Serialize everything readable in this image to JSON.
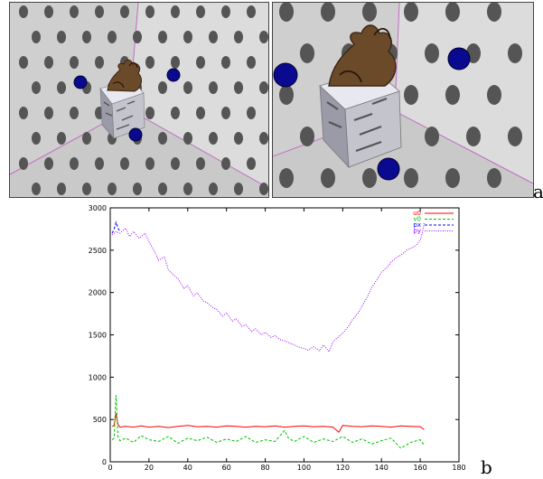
{
  "figure_labels": {
    "a": "a",
    "b": "b"
  },
  "colors": {
    "u0": "#ff0000",
    "v0": "#00c000",
    "px": "#0000ff",
    "py": "#a000ff",
    "wall": "#d9d9d9",
    "dots": "#555555",
    "spheres": "#0a0a90"
  },
  "chart_data": {
    "type": "line",
    "title": "",
    "xlabel": "",
    "ylabel": "",
    "xlim": [
      0,
      180
    ],
    "ylim": [
      0,
      3000
    ],
    "x_ticks": [
      0,
      20,
      40,
      60,
      80,
      100,
      120,
      140,
      160,
      180
    ],
    "y_ticks": [
      0,
      500,
      1000,
      1500,
      2000,
      2500,
      3000
    ],
    "legend_position": "top-right",
    "series": [
      {
        "name": "u0",
        "color": "#ff0000",
        "dash": "solid",
        "x": [
          1,
          2,
          3,
          4,
          5,
          8,
          12,
          16,
          20,
          25,
          30,
          35,
          40,
          45,
          50,
          55,
          60,
          65,
          70,
          75,
          80,
          85,
          90,
          95,
          100,
          105,
          110,
          115,
          118,
          120,
          125,
          130,
          135,
          140,
          145,
          150,
          155,
          160,
          162
        ],
        "values": [
          420,
          430,
          570,
          440,
          410,
          420,
          410,
          425,
          410,
          420,
          405,
          420,
          430,
          415,
          420,
          410,
          425,
          420,
          410,
          420,
          415,
          425,
          410,
          420,
          425,
          415,
          420,
          410,
          350,
          430,
          420,
          415,
          425,
          420,
          410,
          425,
          420,
          415,
          380
        ]
      },
      {
        "name": "v0",
        "color": "#00c000",
        "dash": "dashed",
        "x": [
          1,
          2,
          3,
          4,
          5,
          8,
          12,
          16,
          20,
          25,
          30,
          35,
          40,
          45,
          50,
          55,
          60,
          65,
          70,
          75,
          80,
          85,
          90,
          92,
          95,
          100,
          105,
          110,
          115,
          120,
          125,
          130,
          135,
          140,
          145,
          150,
          155,
          160,
          162
        ],
        "values": [
          260,
          280,
          790,
          300,
          250,
          280,
          230,
          310,
          260,
          240,
          300,
          220,
          280,
          250,
          290,
          230,
          270,
          240,
          300,
          230,
          260,
          240,
          370,
          280,
          240,
          300,
          230,
          270,
          240,
          300,
          230,
          270,
          210,
          250,
          280,
          160,
          230,
          260,
          200
        ]
      },
      {
        "name": "px",
        "color": "#0000ff",
        "dash": "dashed",
        "x": [
          1,
          2,
          3,
          4,
          5
        ],
        "values": [
          2700,
          2750,
          2830,
          2760,
          2720
        ]
      },
      {
        "name": "py",
        "color": "#a000ff",
        "dash": "dotted",
        "x": [
          1,
          3,
          5,
          8,
          10,
          12,
          15,
          18,
          20,
          23,
          25,
          28,
          30,
          33,
          35,
          38,
          40,
          43,
          45,
          48,
          50,
          53,
          55,
          58,
          60,
          63,
          65,
          68,
          70,
          73,
          75,
          78,
          80,
          83,
          85,
          88,
          90,
          93,
          95,
          98,
          100,
          102,
          105,
          108,
          110,
          113,
          115,
          118,
          120,
          123,
          125,
          128,
          130,
          133,
          135,
          138,
          140,
          143,
          145,
          148,
          150,
          153,
          155,
          158,
          160,
          161,
          162
        ],
        "values": [
          2680,
          2720,
          2700,
          2760,
          2660,
          2720,
          2640,
          2700,
          2600,
          2480,
          2380,
          2420,
          2270,
          2200,
          2160,
          2050,
          2080,
          1960,
          2000,
          1900,
          1880,
          1820,
          1800,
          1720,
          1760,
          1660,
          1690,
          1600,
          1620,
          1540,
          1570,
          1500,
          1530,
          1470,
          1490,
          1440,
          1430,
          1400,
          1380,
          1350,
          1340,
          1320,
          1360,
          1310,
          1380,
          1300,
          1420,
          1480,
          1520,
          1600,
          1680,
          1760,
          1840,
          1960,
          2060,
          2160,
          2240,
          2300,
          2360,
          2420,
          2440,
          2500,
          2520,
          2560,
          2620,
          2700,
          2820
        ]
      }
    ]
  }
}
